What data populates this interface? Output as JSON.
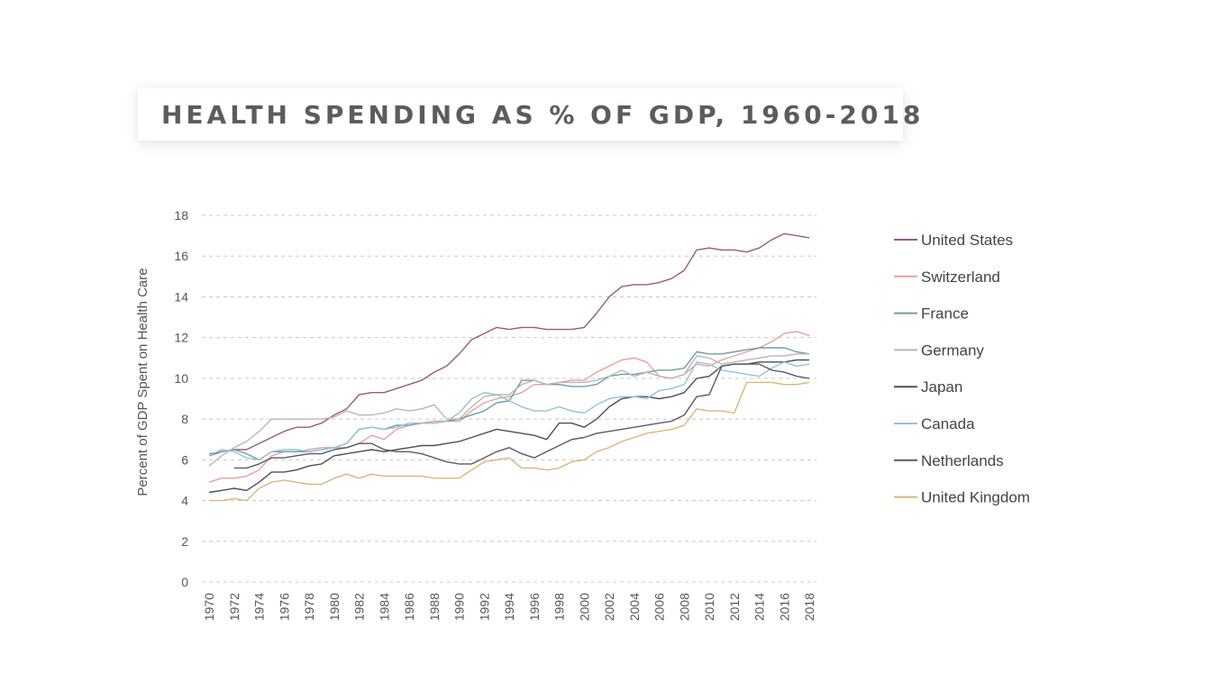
{
  "title": "HEALTH SPENDING AS % OF GDP, 1960-2018",
  "chart_data": {
    "type": "line",
    "ylabel": "Percent of GDP Spent on Health Care",
    "xlabel": "",
    "ylim": [
      0,
      18
    ],
    "xlim": [
      1970,
      2018
    ],
    "yticks": [
      0,
      2,
      4,
      6,
      8,
      10,
      12,
      14,
      16,
      18
    ],
    "xticks": [
      1970,
      1972,
      1974,
      1976,
      1978,
      1980,
      1982,
      1984,
      1986,
      1988,
      1990,
      1992,
      1994,
      1996,
      1998,
      2000,
      2002,
      2004,
      2006,
      2008,
      2010,
      2012,
      2014,
      2016,
      2018
    ],
    "grid": "horizontal dashed",
    "legend_position": "right",
    "series": [
      {
        "name": "United States",
        "color": "#9b5a7c",
        "x": [
          1970,
          1971,
          1972,
          1973,
          1974,
          1975,
          1976,
          1977,
          1978,
          1979,
          1980,
          1981,
          1982,
          1983,
          1984,
          1985,
          1986,
          1987,
          1988,
          1989,
          1990,
          1991,
          1992,
          1993,
          1994,
          1995,
          1996,
          1997,
          1998,
          1999,
          2000,
          2001,
          2002,
          2003,
          2004,
          2005,
          2006,
          2007,
          2008,
          2009,
          2010,
          2011,
          2012,
          2013,
          2014,
          2015,
          2016,
          2017,
          2018
        ],
        "values": [
          6.2,
          6.4,
          6.5,
          6.5,
          6.8,
          7.1,
          7.4,
          7.6,
          7.6,
          7.8,
          8.2,
          8.5,
          9.2,
          9.3,
          9.3,
          9.5,
          9.7,
          9.9,
          10.3,
          10.6,
          11.2,
          11.9,
          12.2,
          12.5,
          12.4,
          12.5,
          12.5,
          12.4,
          12.4,
          12.4,
          12.5,
          13.2,
          14.0,
          14.5,
          14.6,
          14.6,
          14.7,
          14.9,
          15.3,
          16.3,
          16.4,
          16.3,
          16.3,
          16.2,
          16.4,
          16.8,
          17.1,
          17.0,
          16.9
        ]
      },
      {
        "name": "Switzerland",
        "color": "#e8a09a",
        "x": [
          1970,
          1971,
          1972,
          1973,
          1974,
          1975,
          1976,
          1977,
          1978,
          1979,
          1980,
          1981,
          1982,
          1983,
          1984,
          1985,
          1986,
          1987,
          1988,
          1989,
          1990,
          1991,
          1992,
          1993,
          1994,
          1995,
          1996,
          1997,
          1998,
          1999,
          2000,
          2001,
          2002,
          2003,
          2004,
          2005,
          2006,
          2007,
          2008,
          2009,
          2010,
          2011,
          2012,
          2013,
          2014,
          2015,
          2016,
          2017,
          2018
        ],
        "values": [
          4.9,
          5.1,
          5.1,
          5.2,
          5.5,
          6.2,
          6.4,
          6.4,
          6.5,
          6.6,
          6.6,
          6.6,
          6.8,
          7.2,
          7.0,
          7.5,
          7.7,
          7.8,
          7.9,
          7.9,
          7.9,
          8.4,
          8.8,
          9.0,
          9.1,
          9.3,
          9.7,
          9.7,
          9.8,
          9.9,
          9.9,
          10.3,
          10.6,
          10.9,
          11.0,
          10.8,
          10.1,
          10.0,
          10.2,
          10.7,
          10.6,
          10.9,
          11.1,
          11.3,
          11.5,
          11.8,
          12.2,
          12.3,
          12.1
        ]
      },
      {
        "name": "France",
        "color": "#6d9ea6",
        "x": [
          1970,
          1971,
          1972,
          1973,
          1974,
          1975,
          1976,
          1977,
          1978,
          1979,
          1980,
          1981,
          1982,
          1983,
          1984,
          1985,
          1986,
          1987,
          1988,
          1989,
          1990,
          1991,
          1992,
          1993,
          1994,
          1995,
          1996,
          1997,
          1998,
          1999,
          2000,
          2001,
          2002,
          2003,
          2004,
          2005,
          2006,
          2007,
          2008,
          2009,
          2010,
          2011,
          2012,
          2013,
          2014,
          2015,
          2016,
          2017,
          2018
        ],
        "values": [
          6.3,
          6.4,
          6.5,
          6.3,
          6.0,
          6.4,
          6.4,
          6.4,
          6.4,
          6.5,
          6.6,
          6.8,
          7.5,
          7.6,
          7.5,
          7.7,
          7.7,
          7.8,
          7.8,
          7.9,
          8.0,
          8.2,
          8.4,
          8.8,
          8.9,
          9.9,
          9.9,
          9.7,
          9.7,
          9.6,
          9.6,
          9.7,
          10.1,
          10.2,
          10.2,
          10.3,
          10.4,
          10.4,
          10.5,
          11.3,
          11.2,
          11.2,
          11.3,
          11.4,
          11.5,
          11.5,
          11.5,
          11.3,
          11.2
        ]
      },
      {
        "name": "Germany",
        "color": "#b8b8b8",
        "x": [
          1970,
          1971,
          1972,
          1973,
          1974,
          1975,
          1976,
          1977,
          1978,
          1979,
          1980,
          1981,
          1982,
          1983,
          1984,
          1985,
          1986,
          1987,
          1988,
          1989,
          1990,
          1991,
          1992,
          1993,
          1994,
          1995,
          1996,
          1997,
          1998,
          1999,
          2000,
          2001,
          2002,
          2003,
          2004,
          2005,
          2006,
          2007,
          2008,
          2009,
          2010,
          2011,
          2012,
          2013,
          2014,
          2015,
          2016,
          2017,
          2018
        ],
        "values": [
          5.7,
          6.2,
          6.6,
          6.9,
          7.4,
          8.0,
          8.0,
          8.0,
          8.0,
          8.0,
          8.1,
          8.4,
          8.2,
          8.2,
          8.3,
          8.5,
          8.4,
          8.5,
          8.7,
          8.0,
          8.0,
          8.6,
          9.1,
          9.2,
          9.2,
          9.7,
          9.9,
          9.7,
          9.8,
          9.8,
          9.8,
          9.9,
          10.1,
          10.4,
          10.1,
          10.3,
          10.1,
          10.0,
          10.2,
          11.1,
          11.0,
          10.7,
          10.8,
          10.9,
          11.0,
          11.1,
          11.1,
          11.2,
          11.2
        ]
      },
      {
        "name": "Japan",
        "color": "#4e4e5a",
        "x": [
          1970,
          1971,
          1972,
          1973,
          1974,
          1975,
          1976,
          1977,
          1978,
          1979,
          1980,
          1981,
          1982,
          1983,
          1984,
          1985,
          1986,
          1987,
          1988,
          1989,
          1990,
          1991,
          1992,
          1993,
          1994,
          1995,
          1996,
          1997,
          1998,
          1999,
          2000,
          2001,
          2002,
          2003,
          2004,
          2005,
          2006,
          2007,
          2008,
          2009,
          2010,
          2011,
          2012,
          2013,
          2014,
          2015,
          2016,
          2017,
          2018
        ],
        "values": [
          4.4,
          4.5,
          4.6,
          4.5,
          4.9,
          5.4,
          5.4,
          5.5,
          5.7,
          5.8,
          6.2,
          6.3,
          6.4,
          6.5,
          6.4,
          6.5,
          6.6,
          6.7,
          6.7,
          6.8,
          6.9,
          7.1,
          7.3,
          7.5,
          7.4,
          7.3,
          7.2,
          7.0,
          7.8,
          7.8,
          7.6,
          8.0,
          8.6,
          9.0,
          9.1,
          9.1,
          9.0,
          9.1,
          9.3,
          10.0,
          10.1,
          10.6,
          10.7,
          10.7,
          10.8,
          10.8,
          10.8,
          10.9,
          10.9
        ]
      },
      {
        "name": "Canada",
        "color": "#94c2d8",
        "x": [
          1970,
          1971,
          1972,
          1973,
          1974,
          1975,
          1976,
          1977,
          1978,
          1979,
          1980,
          1981,
          1982,
          1983,
          1984,
          1985,
          1986,
          1987,
          1988,
          1989,
          1990,
          1991,
          1992,
          1993,
          1994,
          1995,
          1996,
          1997,
          1998,
          1999,
          2000,
          2001,
          2002,
          2003,
          2004,
          2005,
          2006,
          2007,
          2008,
          2009,
          2010,
          2011,
          2012,
          2013,
          2014,
          2015,
          2016,
          2017,
          2018
        ],
        "values": [
          6.2,
          6.5,
          6.4,
          6.1,
          6.0,
          6.4,
          6.5,
          6.5,
          6.4,
          6.5,
          6.6,
          6.8,
          7.5,
          7.6,
          7.5,
          7.6,
          7.8,
          7.8,
          7.8,
          7.9,
          8.3,
          9.0,
          9.3,
          9.2,
          8.9,
          8.6,
          8.4,
          8.4,
          8.6,
          8.4,
          8.3,
          8.7,
          9.0,
          9.1,
          9.1,
          9.0,
          9.4,
          9.5,
          9.7,
          10.8,
          10.7,
          10.4,
          10.3,
          10.2,
          10.1,
          10.5,
          10.8,
          10.6,
          10.7
        ]
      },
      {
        "name": "Netherlands",
        "color": "#5a5a62",
        "x": [
          1972,
          1973,
          1974,
          1975,
          1976,
          1977,
          1978,
          1979,
          1980,
          1981,
          1982,
          1983,
          1984,
          1985,
          1986,
          1987,
          1988,
          1989,
          1990,
          1991,
          1992,
          1993,
          1994,
          1995,
          1996,
          1997,
          1998,
          1999,
          2000,
          2001,
          2002,
          2003,
          2004,
          2005,
          2006,
          2007,
          2008,
          2009,
          2010,
          2011,
          2012,
          2013,
          2014,
          2015,
          2016,
          2017,
          2018
        ],
        "values": [
          5.6,
          5.6,
          5.8,
          6.1,
          6.1,
          6.2,
          6.3,
          6.3,
          6.5,
          6.6,
          6.8,
          6.8,
          6.5,
          6.4,
          6.4,
          6.3,
          6.1,
          5.9,
          5.8,
          5.8,
          6.1,
          6.4,
          6.6,
          6.3,
          6.1,
          6.4,
          6.7,
          7.0,
          7.1,
          7.3,
          7.4,
          7.5,
          7.6,
          7.7,
          7.8,
          7.9,
          8.2,
          9.1,
          9.2,
          10.6,
          10.7,
          10.7,
          10.7,
          10.4,
          10.3,
          10.1,
          10.0
        ]
      },
      {
        "name": "United Kingdom",
        "color": "#d8b77a",
        "x": [
          1970,
          1971,
          1972,
          1973,
          1974,
          1975,
          1976,
          1977,
          1978,
          1979,
          1980,
          1981,
          1982,
          1983,
          1984,
          1985,
          1986,
          1987,
          1988,
          1989,
          1990,
          1991,
          1992,
          1993,
          1994,
          1995,
          1996,
          1997,
          1998,
          1999,
          2000,
          2001,
          2002,
          2003,
          2004,
          2005,
          2006,
          2007,
          2008,
          2009,
          2010,
          2011,
          2012,
          2013,
          2014,
          2015,
          2016,
          2017,
          2018
        ],
        "values": [
          4.0,
          4.0,
          4.1,
          4.0,
          4.6,
          4.9,
          5.0,
          4.9,
          4.8,
          4.8,
          5.1,
          5.3,
          5.1,
          5.3,
          5.2,
          5.2,
          5.2,
          5.2,
          5.1,
          5.1,
          5.1,
          5.5,
          5.9,
          6.0,
          6.1,
          5.6,
          5.6,
          5.5,
          5.6,
          5.9,
          6.0,
          6.4,
          6.6,
          6.9,
          7.1,
          7.3,
          7.4,
          7.5,
          7.7,
          8.5,
          8.4,
          8.4,
          8.3,
          9.8,
          9.8,
          9.8,
          9.7,
          9.7,
          9.8
        ]
      }
    ]
  }
}
